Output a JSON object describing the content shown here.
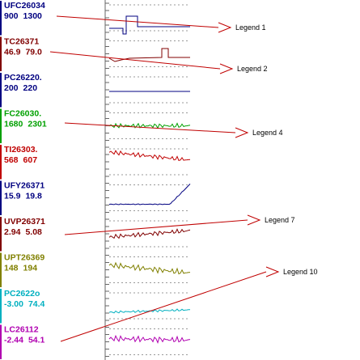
{
  "strips": [
    {
      "tag": "UFC26034",
      "low": "900",
      "high": "1300",
      "color": "#000080"
    },
    {
      "tag": "TC26371",
      "low": "46.9",
      "high": "79.0",
      "color": "#800000"
    },
    {
      "tag": "PC26220.",
      "low": "200",
      "high": "220",
      "color": "#000080"
    },
    {
      "tag": "FC26030.",
      "low": "1680",
      "high": "2301",
      "color": "#00a000"
    },
    {
      "tag": "TI26303.",
      "low": "568",
      "high": "607",
      "color": "#c00000"
    },
    {
      "tag": "UFY26371",
      "low": "15.9",
      "high": "19.8",
      "color": "#000080"
    },
    {
      "tag": "UVP26371",
      "low": "2.94",
      "high": "5.08",
      "color": "#800000"
    },
    {
      "tag": "UPT26369",
      "low": "148",
      "high": "194",
      "color": "#808000"
    },
    {
      "tag": "PC2622o",
      "low": "-3.00",
      "high": "74.4",
      "color": "#00b0c0"
    },
    {
      "tag": "LC26112",
      "low": "-2.44",
      "high": "54.1",
      "color": "#b000b0"
    }
  ],
  "callouts": [
    "Legend 1",
    "Legend 2",
    "Legend 4",
    "Legend 7",
    "Legend 10"
  ]
}
